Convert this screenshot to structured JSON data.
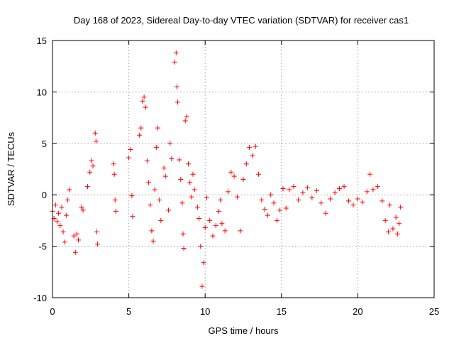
{
  "chart_data": {
    "type": "scatter",
    "title": "Day 168 of 2023, Sidereal Day-to-day VTEC variation (SDTVAR) for receiver cas1",
    "xlabel": "GPS time / hours",
    "ylabel": "SDTVAR / TECUs",
    "xlim": [
      0,
      25
    ],
    "ylim": [
      -10,
      15
    ],
    "xticks": [
      0,
      5,
      10,
      15,
      20,
      25
    ],
    "yticks": [
      -10,
      -5,
      0,
      5,
      10,
      15
    ],
    "xtick_labels": [
      "0",
      "5",
      "10",
      "15",
      "20",
      "25"
    ],
    "ytick_labels": [
      "-10",
      "-5",
      "0",
      "5",
      "10",
      "15"
    ],
    "grid": true,
    "marker": "plus",
    "color": "#ff0000",
    "series": [
      {
        "name": "SDTVAR",
        "points": [
          [
            0.0,
            -1.6
          ],
          [
            0.1,
            -2.3
          ],
          [
            0.2,
            -1.0
          ],
          [
            0.3,
            -2.6
          ],
          [
            0.4,
            -1.8
          ],
          [
            0.5,
            -3.0
          ],
          [
            0.6,
            -1.2
          ],
          [
            0.7,
            -3.6
          ],
          [
            0.8,
            -4.6
          ],
          [
            0.9,
            -2.0
          ],
          [
            1.0,
            -0.5
          ],
          [
            1.1,
            0.5
          ],
          [
            1.4,
            -4.0
          ],
          [
            1.5,
            -5.6
          ],
          [
            1.6,
            -3.8
          ],
          [
            1.7,
            -4.4
          ],
          [
            1.9,
            -1.2
          ],
          [
            2.0,
            -1.5
          ],
          [
            2.3,
            0.8
          ],
          [
            2.45,
            2.2
          ],
          [
            2.55,
            3.3
          ],
          [
            2.65,
            2.8
          ],
          [
            2.8,
            6.0
          ],
          [
            2.85,
            5.2
          ],
          [
            2.9,
            -3.6
          ],
          [
            2.95,
            -4.8
          ],
          [
            4.0,
            3.0
          ],
          [
            4.05,
            2.0
          ],
          [
            4.1,
            -0.5
          ],
          [
            4.15,
            -1.6
          ],
          [
            5.0,
            3.6
          ],
          [
            5.1,
            4.4
          ],
          [
            5.2,
            -0.1
          ],
          [
            5.25,
            -2.1
          ],
          [
            5.7,
            5.8
          ],
          [
            5.8,
            6.5
          ],
          [
            5.9,
            9.1
          ],
          [
            6.0,
            9.5
          ],
          [
            6.1,
            8.5
          ],
          [
            6.2,
            3.3
          ],
          [
            6.3,
            1.2
          ],
          [
            6.4,
            -1.0
          ],
          [
            6.5,
            -3.5
          ],
          [
            6.6,
            -4.5
          ],
          [
            6.7,
            0.5
          ],
          [
            6.8,
            4.6
          ],
          [
            6.9,
            6.5
          ],
          [
            7.0,
            -0.5
          ],
          [
            7.1,
            -2.5
          ],
          [
            7.3,
            2.6
          ],
          [
            7.4,
            1.8
          ],
          [
            7.6,
            -1.5
          ],
          [
            7.7,
            5.0
          ],
          [
            7.8,
            3.5
          ],
          [
            8.0,
            12.9
          ],
          [
            8.1,
            13.8
          ],
          [
            8.15,
            10.5
          ],
          [
            8.2,
            9.0
          ],
          [
            8.3,
            3.4
          ],
          [
            8.4,
            1.5
          ],
          [
            8.5,
            -0.8
          ],
          [
            8.55,
            -3.8
          ],
          [
            8.6,
            -5.2
          ],
          [
            8.7,
            7.2
          ],
          [
            8.8,
            7.6
          ],
          [
            8.9,
            3.0
          ],
          [
            9.0,
            1.2
          ],
          [
            9.1,
            -0.2
          ],
          [
            9.2,
            2.0
          ],
          [
            9.3,
            0.5
          ],
          [
            9.5,
            -1.2
          ],
          [
            9.6,
            -2.3
          ],
          [
            9.7,
            -5.0
          ],
          [
            9.8,
            -8.9
          ],
          [
            9.9,
            -6.6
          ],
          [
            10.0,
            -3.2
          ],
          [
            10.1,
            -0.3
          ],
          [
            10.3,
            -2.5
          ],
          [
            10.5,
            -4.0
          ],
          [
            10.7,
            -3.0
          ],
          [
            10.9,
            -1.6
          ],
          [
            11.0,
            -0.5
          ],
          [
            11.1,
            -2.8
          ],
          [
            11.3,
            -3.5
          ],
          [
            11.5,
            0.3
          ],
          [
            11.7,
            2.2
          ],
          [
            11.9,
            1.8
          ],
          [
            12.1,
            -0.2
          ],
          [
            12.3,
            -3.5
          ],
          [
            12.5,
            1.5
          ],
          [
            12.7,
            3.0
          ],
          [
            12.9,
            4.6
          ],
          [
            13.1,
            3.8
          ],
          [
            13.3,
            4.7
          ],
          [
            13.5,
            2.0
          ],
          [
            13.7,
            -0.5
          ],
          [
            13.9,
            -1.4
          ],
          [
            14.1,
            -2.0
          ],
          [
            14.3,
            0.0
          ],
          [
            14.5,
            -0.8
          ],
          [
            14.7,
            -2.5
          ],
          [
            14.9,
            -1.5
          ],
          [
            15.1,
            0.6
          ],
          [
            15.3,
            -1.3
          ],
          [
            15.5,
            0.5
          ],
          [
            15.8,
            0.8
          ],
          [
            16.1,
            -0.5
          ],
          [
            16.4,
            0.2
          ],
          [
            16.7,
            0.7
          ],
          [
            17.0,
            -0.3
          ],
          [
            17.3,
            0.4
          ],
          [
            17.6,
            -0.8
          ],
          [
            17.9,
            -1.8
          ],
          [
            18.2,
            -0.4
          ],
          [
            18.5,
            0.2
          ],
          [
            18.8,
            0.6
          ],
          [
            19.1,
            0.8
          ],
          [
            19.4,
            -0.6
          ],
          [
            19.7,
            -1.0
          ],
          [
            20.0,
            -0.4
          ],
          [
            20.3,
            -0.7
          ],
          [
            20.6,
            0.3
          ],
          [
            20.8,
            2.0
          ],
          [
            21.0,
            0.5
          ],
          [
            21.3,
            0.8
          ],
          [
            21.6,
            -0.6
          ],
          [
            21.8,
            -2.5
          ],
          [
            22.0,
            -3.6
          ],
          [
            22.1,
            -1.0
          ],
          [
            22.3,
            -3.3
          ],
          [
            22.5,
            -2.2
          ],
          [
            22.6,
            -3.8
          ],
          [
            22.7,
            -2.8
          ],
          [
            22.8,
            -1.2
          ]
        ]
      }
    ]
  }
}
